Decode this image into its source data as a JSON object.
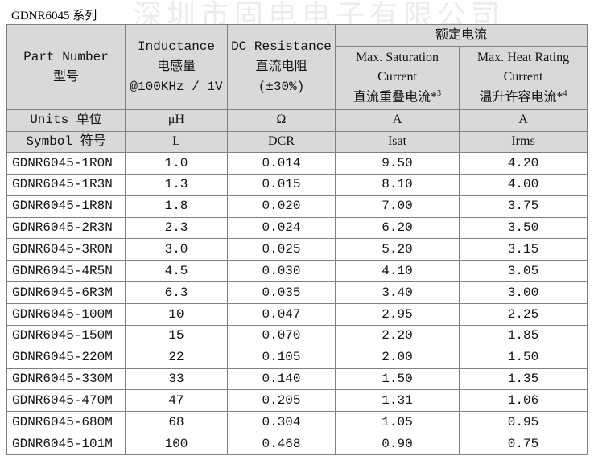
{
  "header": {
    "title": "GDNR6045 系列",
    "watermark": "深圳市固电电子有限公司"
  },
  "table": {
    "group_header": "额定电流",
    "columns": [
      {
        "lines": [
          "Part Number",
          "型号"
        ]
      },
      {
        "lines": [
          "Inductance",
          "电感量",
          "@100KHz / 1V"
        ]
      },
      {
        "lines": [
          "DC Resistance",
          "直流电阻",
          "(±30%)"
        ]
      },
      {
        "lines": [
          "Max. Saturation",
          "Current",
          "直流重叠电流*"
        ],
        "sup": "3"
      },
      {
        "lines": [
          "Max. Heat Rating",
          "Current",
          "温升许容电流*"
        ],
        "sup": "4"
      }
    ],
    "units": [
      "Units 单位",
      "μH",
      "Ω",
      "A",
      "A"
    ],
    "symbols": [
      "Symbol 符号",
      "L",
      "DCR",
      "Isat",
      "Irms"
    ],
    "rows": [
      [
        "GDNR6045-1R0N",
        "1.0",
        "0.014",
        "9.50",
        "4.20"
      ],
      [
        "GDNR6045-1R3N",
        "1.3",
        "0.015",
        "8.10",
        "4.00"
      ],
      [
        "GDNR6045-1R8N",
        "1.8",
        "0.020",
        "7.00",
        "3.75"
      ],
      [
        "GDNR6045-2R3N",
        "2.3",
        "0.024",
        "6.20",
        "3.50"
      ],
      [
        "GDNR6045-3R0N",
        "3.0",
        "0.025",
        "5.20",
        "3.15"
      ],
      [
        "GDNR6045-4R5N",
        "4.5",
        "0.030",
        "4.10",
        "3.05"
      ],
      [
        "GDNR6045-6R3M",
        "6.3",
        "0.035",
        "3.40",
        "3.00"
      ],
      [
        "GDNR6045-100M",
        "10",
        "0.047",
        "2.95",
        "2.25"
      ],
      [
        "GDNR6045-150M",
        "15",
        "0.070",
        "2.20",
        "1.85"
      ],
      [
        "GDNR6045-220M",
        "22",
        "0.105",
        "2.00",
        "1.50"
      ],
      [
        "GDNR6045-330M",
        "33",
        "0.140",
        "1.50",
        "1.35"
      ],
      [
        "GDNR6045-470M",
        "47",
        "0.205",
        "1.31",
        "1.06"
      ],
      [
        "GDNR6045-680M",
        "68",
        "0.304",
        "1.05",
        "0.95"
      ],
      [
        "GDNR6045-101M",
        "100",
        "0.468",
        "0.90",
        "0.75"
      ]
    ]
  }
}
